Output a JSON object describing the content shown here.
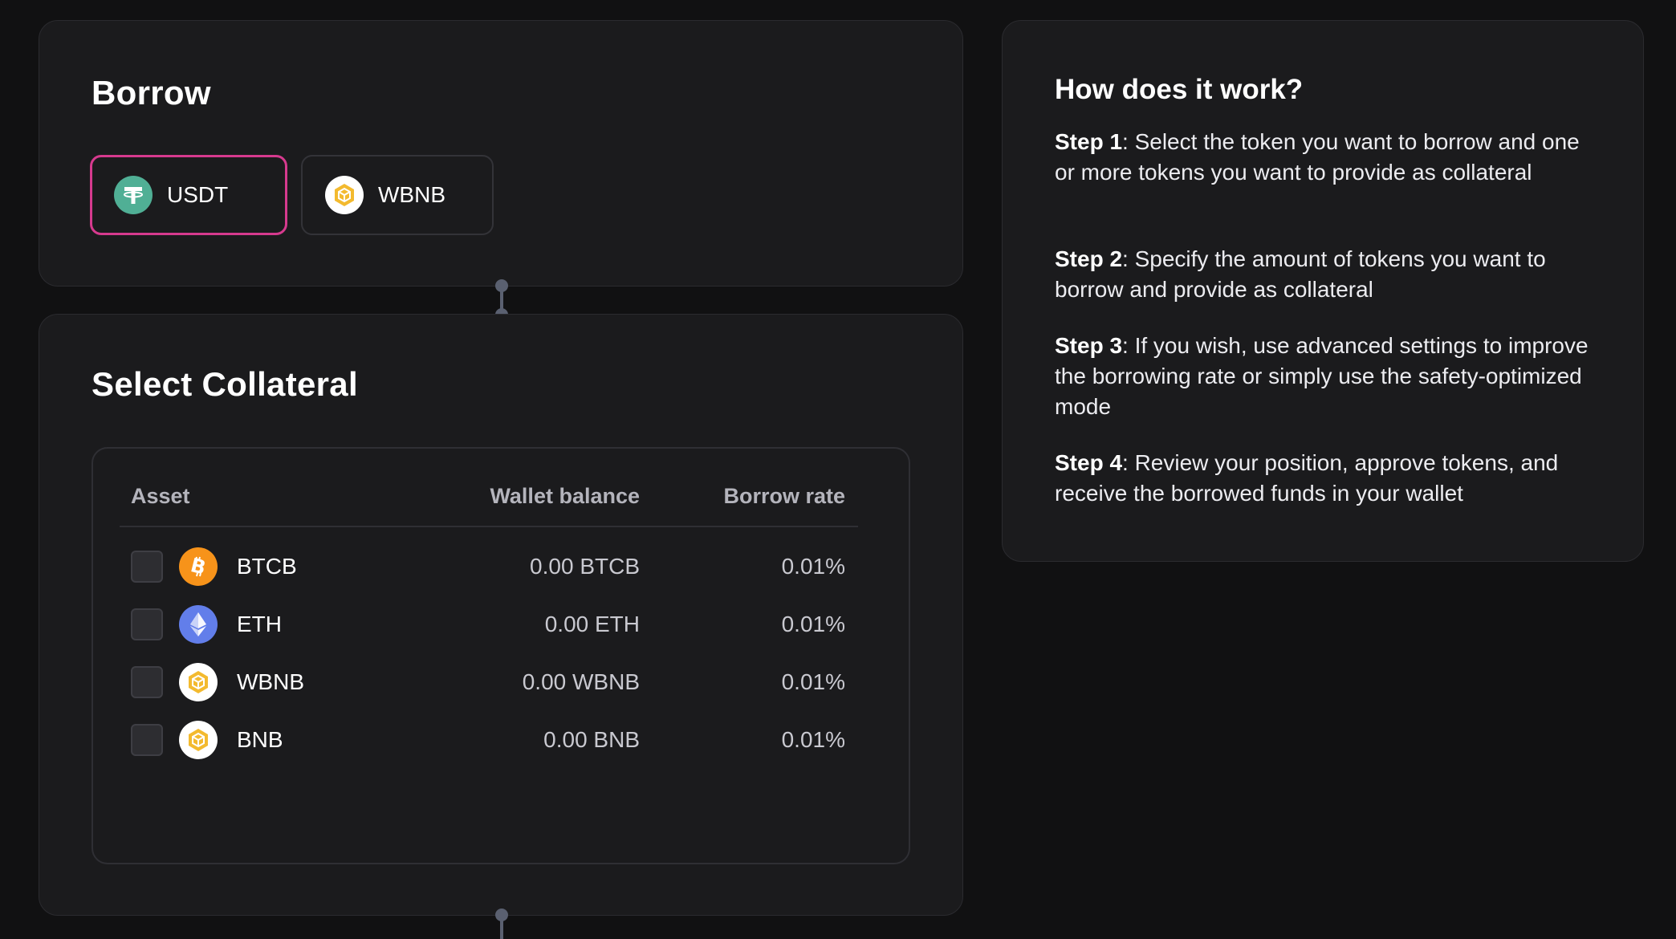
{
  "borrow": {
    "title": "Borrow",
    "tokens": [
      {
        "symbol": "USDT",
        "icon": "tether-icon",
        "selected": true
      },
      {
        "symbol": "WBNB",
        "icon": "bnb-icon",
        "selected": false
      }
    ]
  },
  "collateral": {
    "title": "Select Collateral",
    "columns": {
      "asset": "Asset",
      "wallet_balance": "Wallet balance",
      "borrow_rate": "Borrow rate"
    },
    "rows": [
      {
        "asset": "BTCB",
        "icon": "bitcoin-icon",
        "balance": "0.00 BTCB",
        "rate": "0.01%",
        "checked": false
      },
      {
        "asset": "ETH",
        "icon": "ethereum-icon",
        "balance": "0.00 ETH",
        "rate": "0.01%",
        "checked": false
      },
      {
        "asset": "WBNB",
        "icon": "bnb-icon",
        "balance": "0.00 WBNB",
        "rate": "0.01%",
        "checked": false
      },
      {
        "asset": "BNB",
        "icon": "bnb-icon",
        "balance": "0.00 BNB",
        "rate": "0.01%",
        "checked": false
      }
    ]
  },
  "how_it_works": {
    "title": "How does it work?",
    "steps": [
      {
        "label": "Step 1",
        "text": ": Select the token you want to borrow and one or more tokens you want to provide as collateral"
      },
      {
        "label": "Step 2",
        "text": ": Specify the amount of tokens you want to borrow and provide as collateral"
      },
      {
        "label": "Step 3",
        "text": ": If you wish, use advanced settings to improve the borrowing rate or simply use the safety-optimized mode"
      },
      {
        "label": "Step 4",
        "text": ": Review your position, approve tokens, and receive the borrowed funds in your wallet"
      }
    ]
  },
  "colors": {
    "selected_border": "#d63a8e",
    "usdt": "#50af95",
    "bnb": "#f3ba2f",
    "btc": "#f7931a",
    "eth": "#627eea"
  }
}
